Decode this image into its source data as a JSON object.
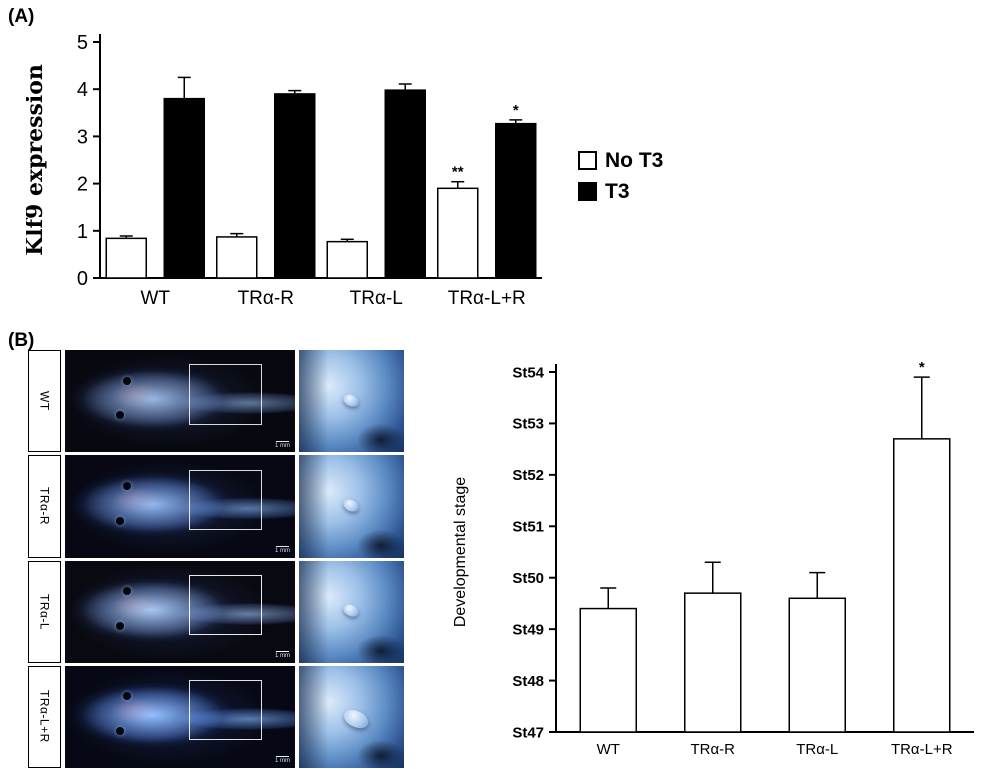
{
  "panel_a": {
    "label": "(A)"
  },
  "panel_b": {
    "label": "(B)",
    "rows": [
      {
        "label": "WT",
        "scalebar": "1 mm"
      },
      {
        "label": "TRα-R",
        "scalebar": "1 mm"
      },
      {
        "label": "TRα-L",
        "scalebar": "1 mm"
      },
      {
        "label": "TRα-L+R",
        "scalebar": "1 mm"
      }
    ]
  },
  "chart_data": [
    {
      "type": "bar",
      "panel": "A",
      "title": "",
      "xlabel": "",
      "ylabel": "Klf9 expression",
      "categories": [
        "WT",
        "TRα-R",
        "TRα-L",
        "TRα-L+R"
      ],
      "series": [
        {
          "name": "No T3",
          "color": "#ffffff",
          "values": [
            0.84,
            0.87,
            0.77,
            1.9
          ],
          "errors": [
            0.05,
            0.07,
            0.05,
            0.14
          ],
          "annotations": [
            "",
            "",
            "",
            "**"
          ]
        },
        {
          "name": "T3",
          "color": "#000000",
          "values": [
            3.8,
            3.9,
            3.98,
            3.27
          ],
          "errors": [
            0.45,
            0.07,
            0.13,
            0.08
          ],
          "annotations": [
            "",
            "",
            "",
            "*"
          ]
        }
      ],
      "ylim": [
        0,
        5
      ],
      "yticks": [
        0,
        1,
        2,
        3,
        4,
        5
      ],
      "ytick_prefix": "",
      "grid": false,
      "legend_position": "right"
    },
    {
      "type": "bar",
      "panel": "B",
      "title": "",
      "xlabel": "",
      "ylabel": "Developmental stage",
      "categories": [
        "WT",
        "TRα-R",
        "TRα-L",
        "TRα-L+R"
      ],
      "series": [
        {
          "name": "Developmental stage",
          "color": "#ffffff",
          "values": [
            49.4,
            49.7,
            49.6,
            52.7
          ],
          "errors": [
            0.4,
            0.6,
            0.5,
            1.2
          ],
          "annotations": [
            "",
            "",
            "",
            "*"
          ]
        }
      ],
      "ylim": [
        47,
        54
      ],
      "yticks": [
        47,
        48,
        49,
        50,
        51,
        52,
        53,
        54
      ],
      "ytick_prefix": "St",
      "grid": false,
      "legend_position": "none"
    }
  ]
}
